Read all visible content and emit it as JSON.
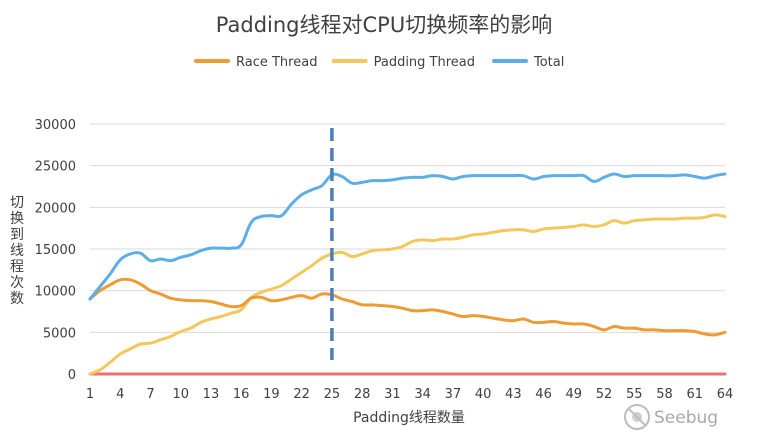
{
  "chart_data": {
    "type": "line",
    "title": "Padding线程对CPU切换频率的影响",
    "xlabel": "Padding线程数量",
    "ylabel": "切换到线程次数",
    "xlim": [
      1,
      64
    ],
    "ylim": [
      0,
      30000
    ],
    "y_ticks": [
      0,
      5000,
      10000,
      15000,
      20000,
      25000,
      30000
    ],
    "x_ticks": [
      1,
      4,
      7,
      10,
      13,
      16,
      19,
      22,
      25,
      28,
      31,
      34,
      37,
      40,
      43,
      46,
      49,
      52,
      55,
      58,
      61,
      64
    ],
    "grid": "horizontal",
    "legend_position": "top",
    "vertical_marker": {
      "x": 25,
      "style": "dashed",
      "color": "#4a7ebb"
    },
    "series": [
      {
        "name": "Race Thread",
        "color": "#ed9b33",
        "values": [
          9000,
          10000,
          10700,
          11300,
          11300,
          10800,
          10000,
          9600,
          9100,
          8900,
          8800,
          8800,
          8700,
          8400,
          8100,
          8200,
          9100,
          9200,
          8800,
          8900,
          9200,
          9400,
          9100,
          9600,
          9500,
          9000,
          8700,
          8300,
          8300,
          8200,
          8100,
          7900,
          7600,
          7600,
          7700,
          7500,
          7200,
          6900,
          7000,
          6900,
          6700,
          6500,
          6400,
          6600,
          6200,
          6200,
          6300,
          6100,
          6000,
          6000,
          5700,
          5300,
          5700,
          5500,
          5500,
          5300,
          5300,
          5200,
          5200,
          5200,
          5100,
          4800,
          4700,
          5000
        ]
      },
      {
        "name": "Padding Thread",
        "color": "#f5c75a",
        "values": [
          0,
          500,
          1400,
          2400,
          3000,
          3600,
          3700,
          4100,
          4500,
          5100,
          5500,
          6200,
          6600,
          6900,
          7300,
          7700,
          9200,
          9800,
          10200,
          10600,
          11400,
          12200,
          13000,
          13900,
          14400,
          14600,
          14100,
          14400,
          14800,
          14900,
          15000,
          15300,
          15900,
          16100,
          16000,
          16200,
          16200,
          16400,
          16700,
          16800,
          17000,
          17200,
          17300,
          17300,
          17100,
          17400,
          17500,
          17600,
          17700,
          17900,
          17700,
          17900,
          18400,
          18100,
          18400,
          18500,
          18600,
          18600,
          18600,
          18700,
          18700,
          18800,
          19100,
          18900
        ]
      },
      {
        "name": "Total",
        "color": "#5caee8",
        "values": [
          9000,
          10500,
          12000,
          13700,
          14400,
          14500,
          13600,
          13800,
          13600,
          14000,
          14300,
          14800,
          15100,
          15100,
          15100,
          15500,
          18200,
          18900,
          19000,
          19000,
          20400,
          21500,
          22100,
          22600,
          23900,
          23700,
          22900,
          23000,
          23200,
          23200,
          23300,
          23500,
          23600,
          23600,
          23800,
          23700,
          23400,
          23700,
          23800,
          23800,
          23800,
          23800,
          23800,
          23800,
          23400,
          23700,
          23800,
          23800,
          23800,
          23800,
          23100,
          23600,
          24000,
          23700,
          23800,
          23800,
          23800,
          23800,
          23800,
          23900,
          23700,
          23500,
          23800,
          24000
        ]
      },
      {
        "name": "",
        "color": "#e57373",
        "values": [
          0,
          0,
          0,
          0,
          0,
          0,
          0,
          0,
          0,
          0,
          0,
          0,
          0,
          0,
          0,
          0,
          0,
          0,
          0,
          0,
          0,
          0,
          0,
          0,
          0,
          0,
          0,
          0,
          0,
          0,
          0,
          0,
          0,
          0,
          0,
          0,
          0,
          0,
          0,
          0,
          0,
          0,
          0,
          0,
          0,
          0,
          0,
          0,
          0,
          0,
          0,
          0,
          0,
          0,
          0,
          0,
          0,
          0,
          0,
          0,
          0,
          0,
          0,
          0
        ]
      }
    ]
  },
  "watermark": {
    "text": "Seebug",
    "icon": "seebug-logo-icon"
  }
}
